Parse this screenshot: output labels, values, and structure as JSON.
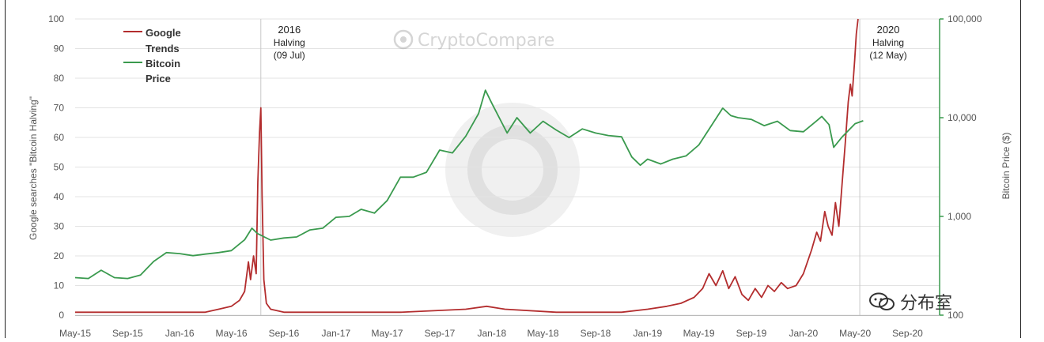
{
  "watermark": {
    "brand": "CryptoCompare",
    "overlay_text": "分布室"
  },
  "chart_data": {
    "type": "line",
    "y_left": {
      "label": "Google searches \"Bitcoin Halving\"",
      "range": [
        0,
        100
      ],
      "ticks": [
        0,
        10,
        20,
        30,
        40,
        50,
        60,
        70,
        80,
        90,
        100
      ]
    },
    "y_right": {
      "label": "Bitcoin Price ($)",
      "scale": "log",
      "range": [
        100,
        100000
      ],
      "ticks": [
        {
          "value": 100,
          "label": "100"
        },
        {
          "value": 1000,
          "label": "1,000"
        },
        {
          "value": 10000,
          "label": "10,000"
        },
        {
          "value": 100000,
          "label": "100,000"
        }
      ]
    },
    "x_axis": {
      "range": [
        "2015-05-01",
        "2020-11-15"
      ],
      "ticks": [
        {
          "date": "2015-05-01",
          "label": "May-15"
        },
        {
          "date": "2015-09-01",
          "label": "Sep-15"
        },
        {
          "date": "2016-01-01",
          "label": "Jan-16"
        },
        {
          "date": "2016-05-01",
          "label": "May-16"
        },
        {
          "date": "2016-09-01",
          "label": "Sep-16"
        },
        {
          "date": "2017-01-01",
          "label": "Jan-17"
        },
        {
          "date": "2017-05-01",
          "label": "May-17"
        },
        {
          "date": "2017-09-01",
          "label": "Sep-17"
        },
        {
          "date": "2018-01-01",
          "label": "Jan-18"
        },
        {
          "date": "2018-05-01",
          "label": "May-18"
        },
        {
          "date": "2018-09-01",
          "label": "Sep-18"
        },
        {
          "date": "2019-01-01",
          "label": "Jan-19"
        },
        {
          "date": "2019-05-01",
          "label": "May-19"
        },
        {
          "date": "2019-09-01",
          "label": "Sep-19"
        },
        {
          "date": "2020-01-01",
          "label": "Jan-20"
        },
        {
          "date": "2020-05-01",
          "label": "May-20"
        },
        {
          "date": "2020-09-01",
          "label": "Sep-20"
        }
      ]
    },
    "grid": true,
    "legend": {
      "placement": "top-left",
      "entries": [
        {
          "label": "Google Trends",
          "color": "#b32d2e"
        },
        {
          "label": "Bitcoin Price",
          "color": "#3a9a4e"
        }
      ]
    },
    "annotations": [
      {
        "date": "2016-07-09",
        "lines": [
          "2016",
          "Halving",
          "(09 Jul)"
        ]
      },
      {
        "date": "2020-05-12",
        "lines": [
          "2020",
          "Halving",
          "(12 May)"
        ]
      }
    ],
    "series": [
      {
        "name": "Google Trends",
        "axis": "left",
        "color": "#b32d2e",
        "points": [
          [
            "2015-05-01",
            1
          ],
          [
            "2015-06-01",
            1
          ],
          [
            "2015-07-01",
            1
          ],
          [
            "2015-08-01",
            1
          ],
          [
            "2015-09-01",
            1
          ],
          [
            "2015-10-01",
            1
          ],
          [
            "2015-11-01",
            1
          ],
          [
            "2015-12-01",
            1
          ],
          [
            "2016-01-01",
            1
          ],
          [
            "2016-02-01",
            1
          ],
          [
            "2016-03-01",
            1
          ],
          [
            "2016-04-01",
            2
          ],
          [
            "2016-05-01",
            3
          ],
          [
            "2016-05-20",
            5
          ],
          [
            "2016-06-01",
            8
          ],
          [
            "2016-06-10",
            18
          ],
          [
            "2016-06-15",
            12
          ],
          [
            "2016-06-22",
            20
          ],
          [
            "2016-06-28",
            14
          ],
          [
            "2016-07-02",
            45
          ],
          [
            "2016-07-06",
            62
          ],
          [
            "2016-07-09",
            70
          ],
          [
            "2016-07-12",
            40
          ],
          [
            "2016-07-16",
            12
          ],
          [
            "2016-07-22",
            4
          ],
          [
            "2016-08-01",
            2
          ],
          [
            "2016-09-01",
            1
          ],
          [
            "2017-01-01",
            1
          ],
          [
            "2017-06-01",
            1
          ],
          [
            "2017-11-01",
            2
          ],
          [
            "2017-12-20",
            3
          ],
          [
            "2018-02-01",
            2
          ],
          [
            "2018-06-01",
            1
          ],
          [
            "2018-11-01",
            1
          ],
          [
            "2019-01-01",
            2
          ],
          [
            "2019-02-15",
            3
          ],
          [
            "2019-03-20",
            4
          ],
          [
            "2019-04-20",
            6
          ],
          [
            "2019-05-10",
            9
          ],
          [
            "2019-05-25",
            14
          ],
          [
            "2019-06-10",
            10
          ],
          [
            "2019-06-26",
            15
          ],
          [
            "2019-07-10",
            9
          ],
          [
            "2019-07-25",
            13
          ],
          [
            "2019-08-10",
            7
          ],
          [
            "2019-08-25",
            5
          ],
          [
            "2019-09-10",
            9
          ],
          [
            "2019-09-25",
            6
          ],
          [
            "2019-10-10",
            10
          ],
          [
            "2019-10-25",
            8
          ],
          [
            "2019-11-10",
            11
          ],
          [
            "2019-11-25",
            9
          ],
          [
            "2019-12-15",
            10
          ],
          [
            "2020-01-01",
            14
          ],
          [
            "2020-01-20",
            22
          ],
          [
            "2020-02-01",
            28
          ],
          [
            "2020-02-10",
            25
          ],
          [
            "2020-02-20",
            35
          ],
          [
            "2020-02-28",
            30
          ],
          [
            "2020-03-08",
            27
          ],
          [
            "2020-03-16",
            38
          ],
          [
            "2020-03-24",
            30
          ],
          [
            "2020-04-01",
            45
          ],
          [
            "2020-04-08",
            58
          ],
          [
            "2020-04-15",
            72
          ],
          [
            "2020-04-20",
            78
          ],
          [
            "2020-04-24",
            74
          ],
          [
            "2020-04-30",
            86
          ],
          [
            "2020-05-04",
            95
          ],
          [
            "2020-05-08",
            100
          ]
        ]
      },
      {
        "name": "Bitcoin Price",
        "axis": "right",
        "color": "#3a9a4e",
        "points": [
          [
            "2015-05-01",
            240
          ],
          [
            "2015-06-01",
            235
          ],
          [
            "2015-07-01",
            285
          ],
          [
            "2015-08-01",
            240
          ],
          [
            "2015-09-01",
            235
          ],
          [
            "2015-10-01",
            255
          ],
          [
            "2015-11-01",
            350
          ],
          [
            "2015-12-01",
            430
          ],
          [
            "2016-01-01",
            420
          ],
          [
            "2016-02-01",
            400
          ],
          [
            "2016-03-01",
            415
          ],
          [
            "2016-04-01",
            430
          ],
          [
            "2016-05-01",
            450
          ],
          [
            "2016-06-01",
            580
          ],
          [
            "2016-06-18",
            760
          ],
          [
            "2016-07-01",
            670
          ],
          [
            "2016-08-01",
            575
          ],
          [
            "2016-09-01",
            605
          ],
          [
            "2016-10-01",
            620
          ],
          [
            "2016-11-01",
            730
          ],
          [
            "2016-12-01",
            760
          ],
          [
            "2017-01-01",
            980
          ],
          [
            "2017-02-01",
            1000
          ],
          [
            "2017-03-01",
            1180
          ],
          [
            "2017-04-01",
            1080
          ],
          [
            "2017-05-01",
            1450
          ],
          [
            "2017-06-01",
            2500
          ],
          [
            "2017-07-01",
            2500
          ],
          [
            "2017-08-01",
            2800
          ],
          [
            "2017-09-01",
            4700
          ],
          [
            "2017-10-01",
            4400
          ],
          [
            "2017-11-01",
            6500
          ],
          [
            "2017-12-01",
            11000
          ],
          [
            "2017-12-17",
            19000
          ],
          [
            "2018-01-01",
            14000
          ],
          [
            "2018-02-06",
            7000
          ],
          [
            "2018-03-01",
            10000
          ],
          [
            "2018-04-01",
            7000
          ],
          [
            "2018-05-01",
            9200
          ],
          [
            "2018-06-01",
            7500
          ],
          [
            "2018-07-01",
            6300
          ],
          [
            "2018-08-01",
            7700
          ],
          [
            "2018-09-01",
            7000
          ],
          [
            "2018-10-01",
            6600
          ],
          [
            "2018-11-01",
            6400
          ],
          [
            "2018-11-25",
            4000
          ],
          [
            "2018-12-15",
            3300
          ],
          [
            "2019-01-01",
            3800
          ],
          [
            "2019-02-01",
            3400
          ],
          [
            "2019-03-01",
            3800
          ],
          [
            "2019-04-01",
            4100
          ],
          [
            "2019-05-01",
            5300
          ],
          [
            "2019-06-01",
            8500
          ],
          [
            "2019-06-26",
            12500
          ],
          [
            "2019-07-15",
            10500
          ],
          [
            "2019-08-01",
            10000
          ],
          [
            "2019-09-01",
            9600
          ],
          [
            "2019-10-01",
            8300
          ],
          [
            "2019-11-01",
            9200
          ],
          [
            "2019-12-01",
            7400
          ],
          [
            "2020-01-01",
            7200
          ],
          [
            "2020-02-01",
            9300
          ],
          [
            "2020-02-13",
            10300
          ],
          [
            "2020-03-01",
            8500
          ],
          [
            "2020-03-12",
            5000
          ],
          [
            "2020-04-01",
            6400
          ],
          [
            "2020-05-01",
            8700
          ],
          [
            "2020-05-20",
            9300
          ]
        ]
      }
    ]
  }
}
